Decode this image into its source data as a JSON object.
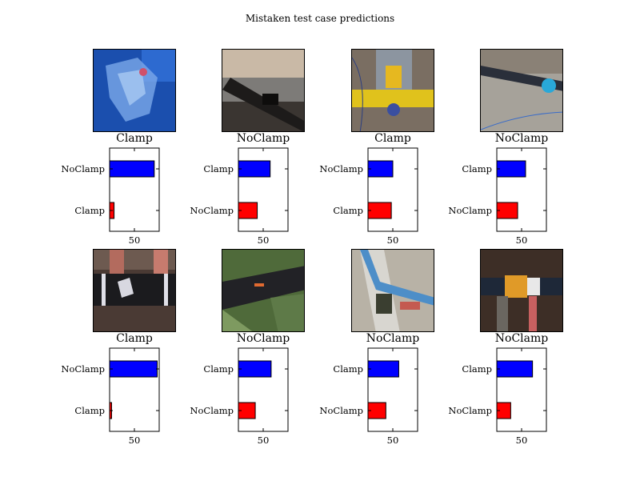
{
  "title": "Mistaken test case predictions",
  "colors": {
    "top_bar": "#0000ff",
    "bottom_bar": "#ff0000",
    "axis": "#000000"
  },
  "chart_data": [
    {
      "type": "bar",
      "orientation": "horizontal",
      "panel": 1,
      "image": "blue-tarp-bag-photo",
      "true_label": "Clamp",
      "categories": [
        "Clamp",
        "NoClamp"
      ],
      "values": [
        9,
        90
      ],
      "colors": [
        "#ff0000",
        "#0000ff"
      ],
      "xticks": [
        50
      ],
      "xlim": [
        0,
        100
      ],
      "ylabel": "",
      "xlabel": ""
    },
    {
      "type": "bar",
      "orientation": "horizontal",
      "panel": 2,
      "image": "pipe-over-lake-photo",
      "true_label": "NoClamp",
      "categories": [
        "NoClamp",
        "Clamp"
      ],
      "values": [
        38,
        64
      ],
      "colors": [
        "#ff0000",
        "#0000ff"
      ],
      "xticks": [
        50
      ],
      "xlim": [
        0,
        100
      ],
      "ylabel": "",
      "xlabel": ""
    },
    {
      "type": "bar",
      "orientation": "horizontal",
      "panel": 3,
      "image": "yellow-pipe-machine-photo",
      "true_label": "Clamp",
      "categories": [
        "Clamp",
        "NoClamp"
      ],
      "values": [
        47,
        50
      ],
      "colors": [
        "#ff0000",
        "#0000ff"
      ],
      "xticks": [
        50
      ],
      "xlim": [
        0,
        100
      ],
      "ylabel": "",
      "xlabel": ""
    },
    {
      "type": "bar",
      "orientation": "horizontal",
      "panel": 4,
      "image": "pipe-with-clamp-ground-photo",
      "true_label": "NoClamp",
      "categories": [
        "NoClamp",
        "Clamp"
      ],
      "values": [
        42,
        58
      ],
      "colors": [
        "#ff0000",
        "#0000ff"
      ],
      "xticks": [
        50
      ],
      "xlim": [
        0,
        100
      ],
      "ylabel": "",
      "xlabel": ""
    },
    {
      "type": "bar",
      "orientation": "horizontal",
      "panel": 5,
      "image": "black-pipe-joint-photo",
      "true_label": "Clamp",
      "categories": [
        "Clamp",
        "NoClamp"
      ],
      "values": [
        4,
        96
      ],
      "colors": [
        "#ff0000",
        "#0000ff"
      ],
      "xticks": [
        50
      ],
      "xlim": [
        0,
        100
      ],
      "ylabel": "",
      "xlabel": ""
    },
    {
      "type": "bar",
      "orientation": "horizontal",
      "panel": 6,
      "image": "pipe-on-green-tarp-photo",
      "true_label": "NoClamp",
      "categories": [
        "NoClamp",
        "Clamp"
      ],
      "values": [
        34,
        66
      ],
      "colors": [
        "#ff0000",
        "#0000ff"
      ],
      "xticks": [
        50
      ],
      "xlim": [
        0,
        100
      ],
      "ylabel": "",
      "xlabel": ""
    },
    {
      "type": "bar",
      "orientation": "horizontal",
      "panel": 7,
      "image": "blue-pipe-boots-photo",
      "true_label": "NoClamp",
      "categories": [
        "NoClamp",
        "Clamp"
      ],
      "values": [
        36,
        62
      ],
      "colors": [
        "#ff0000",
        "#0000ff"
      ],
      "xticks": [
        50
      ],
      "xlim": [
        0,
        100
      ],
      "ylabel": "",
      "xlabel": ""
    },
    {
      "type": "bar",
      "orientation": "horizontal",
      "panel": 8,
      "image": "orange-clamp-pipe-photo",
      "true_label": "NoClamp",
      "categories": [
        "NoClamp",
        "Clamp"
      ],
      "values": [
        28,
        72
      ],
      "colors": [
        "#ff0000",
        "#0000ff"
      ],
      "xticks": [
        50
      ],
      "xlim": [
        0,
        100
      ],
      "ylabel": "",
      "xlabel": ""
    }
  ]
}
